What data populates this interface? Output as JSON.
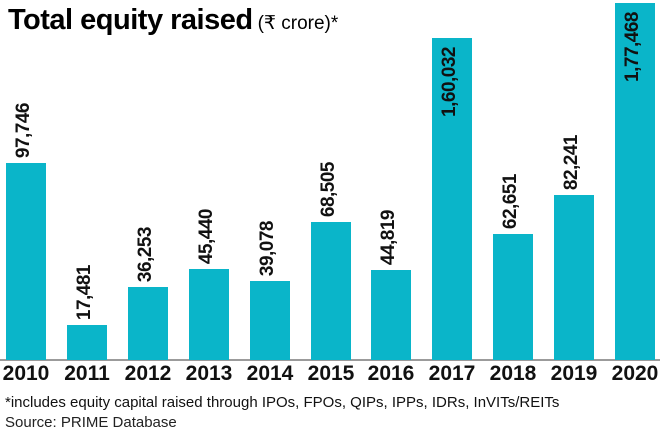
{
  "title": {
    "main": "Total equity raised",
    "unit": "(₹ crore)*"
  },
  "footnote": "*includes equity capital raised through IPOs, FPOs, QIPs, IPPs, IDRs, InVITs/REITs",
  "source": "Source: PRIME Database",
  "colors": {
    "bar": "#0ab5c9",
    "axis": "#9b9b9b",
    "text": "#111111"
  },
  "chart_data": {
    "type": "bar",
    "title": "Total equity raised (₹ crore)*",
    "xlabel": "",
    "ylabel": "₹ crore",
    "categories": [
      "2010",
      "2011",
      "2012",
      "2013",
      "2014",
      "2015",
      "2016",
      "2017",
      "2018",
      "2019",
      "2020"
    ],
    "values": [
      97746,
      17481,
      36253,
      45440,
      39078,
      68505,
      44819,
      160032,
      62651,
      82241,
      177468
    ],
    "value_labels": [
      "97,746",
      "17,481",
      "36,253",
      "45,440",
      "39,078",
      "68,505",
      "44,819",
      "1,60,032",
      "62,651",
      "82,241",
      "1,77,468"
    ],
    "ylim": [
      0,
      180000
    ],
    "grid": false,
    "legend": "none",
    "value_label_rotation": 90
  }
}
